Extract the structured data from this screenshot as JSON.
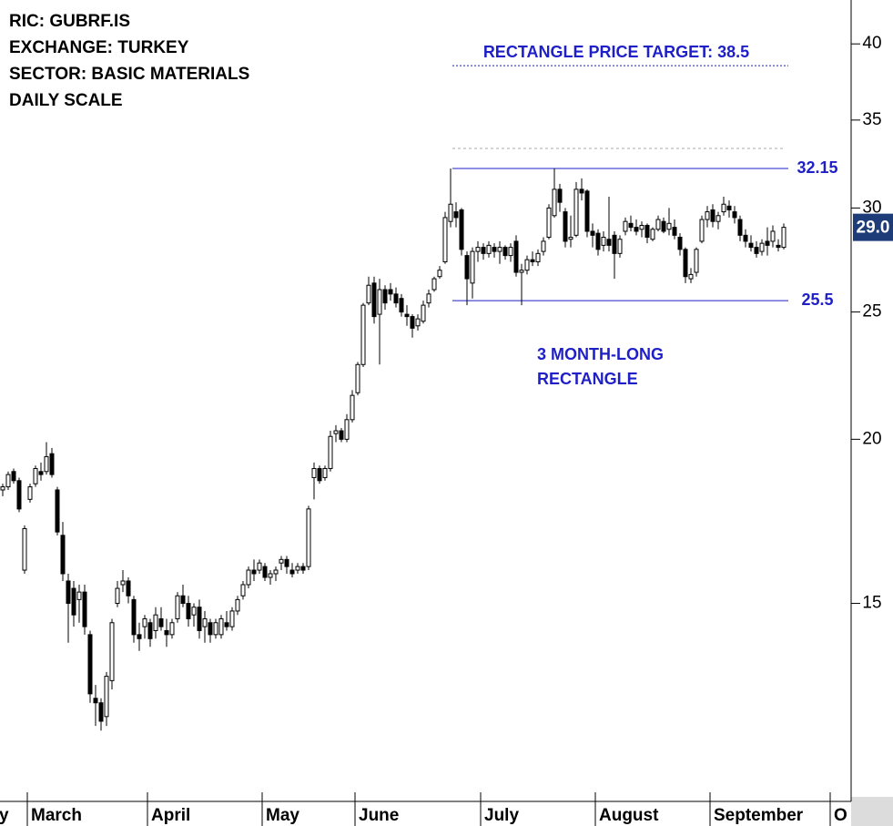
{
  "chart_data": {
    "type": "candlestick",
    "info_lines": [
      "RIC: GUBRF.IS",
      "EXCHANGE: TURKEY",
      "SECTOR: BASIC MATERIALS",
      "DAILY SCALE"
    ],
    "annotation_lines": [
      "3 MONTH-LONG",
      "RECTANGLE"
    ],
    "target": {
      "value": 38.5,
      "label": "RECTANGLE PRICE TARGET: 38.5"
    },
    "levels": [
      32.15,
      25.5
    ],
    "prior_high": 33.3,
    "level_color": "#1f1fc8",
    "last_price": {
      "value": 29,
      "label": "29.0"
    },
    "last_price_color": "#1d3c78",
    "log_scale": true,
    "ylim": [
      10.6,
      43.2
    ],
    "yticks": [
      15,
      20,
      25,
      30,
      35,
      40
    ],
    "categories": [
      "y",
      null,
      null,
      null,
      null,
      "March",
      null,
      null,
      null,
      null,
      null,
      null,
      null,
      null,
      null,
      null,
      null,
      null,
      null,
      null,
      null,
      null,
      null,
      null,
      null,
      null,
      null,
      "April",
      null,
      null,
      null,
      null,
      null,
      null,
      null,
      null,
      null,
      null,
      null,
      null,
      null,
      null,
      null,
      null,
      null,
      null,
      null,
      null,
      "May",
      null,
      null,
      null,
      null,
      null,
      null,
      null,
      null,
      null,
      null,
      null,
      null,
      null,
      null,
      null,
      null,
      "June",
      null,
      null,
      null,
      null,
      null,
      null,
      null,
      null,
      null,
      null,
      null,
      null,
      null,
      null,
      null,
      null,
      null,
      null,
      null,
      null,
      null,
      null,
      "July",
      null,
      null,
      null,
      null,
      null,
      null,
      null,
      null,
      null,
      null,
      null,
      null,
      null,
      null,
      null,
      null,
      null,
      null,
      null,
      null,
      "August",
      null,
      null,
      null,
      null,
      null,
      null,
      null,
      null,
      null,
      null,
      null,
      null,
      null,
      null,
      null,
      null,
      null,
      null,
      null,
      null,
      "September",
      null,
      null,
      null,
      null,
      null,
      null,
      null,
      null,
      null,
      null,
      null,
      null,
      null,
      null,
      null,
      null,
      null,
      null,
      null,
      null,
      null,
      "O"
    ],
    "open": [
      18.3,
      18.4,
      18.9,
      18.6,
      15.9,
      18.0,
      18.5,
      18.9,
      18.9,
      19.5,
      18.3,
      16.9,
      15.6,
      15.4,
      15.1,
      15.3,
      14.2,
      12.7,
      12.6,
      12.3,
      13.1,
      15.0,
      15.5,
      15.6,
      15.1,
      14.2,
      14.4,
      14.5,
      14.3,
      14.6,
      14.3,
      14.2,
      14.6,
      15.2,
      15.0,
      14.7,
      14.9,
      14.4,
      14.5,
      14.2,
      14.2,
      14.5,
      14.4,
      14.8,
      15.2,
      15.5,
      15.9,
      15.9,
      16.0,
      15.7,
      15.8,
      16.1,
      16.2,
      15.9,
      15.9,
      16.0,
      16.0,
      18.7,
      19.0,
      18.7,
      19.0,
      20.2,
      20.3,
      20.0,
      20.7,
      21.7,
      22.8,
      25.4,
      26.3,
      24.9,
      26.0,
      26.0,
      25.8,
      25.6,
      24.9,
      24.8,
      24.4,
      24.6,
      25.4,
      26.0,
      26.6,
      27.3,
      29.3,
      29.8,
      29.9,
      27.6,
      26.3,
      27.8,
      28.0,
      27.7,
      28.0,
      27.8,
      28.0,
      27.6,
      28.3,
      26.8,
      26.9,
      27.4,
      27.3,
      27.8,
      28.5,
      29.6,
      31.0,
      29.8,
      28.4,
      28.6,
      31.0,
      30.9,
      28.8,
      28.7,
      28.1,
      28.4,
      28.6,
      27.7,
      28.8,
      29.2,
      29.0,
      28.9,
      29.1,
      28.4,
      28.9,
      29.3,
      28.9,
      29.0,
      28.5,
      27.9,
      26.5,
      26.8,
      28.3,
      29.4,
      29.9,
      29.3,
      29.8,
      30.1,
      29.8,
      29.4,
      28.6,
      28.2,
      28.0,
      27.8,
      28.3,
      28.3,
      28.1,
      28.0,
      null,
      null,
      null,
      null,
      null,
      null,
      null,
      null,
      null
    ],
    "high": [
      18.5,
      18.9,
      19.0,
      18.7,
      17.2,
      18.5,
      19.1,
      19.2,
      19.9,
      19.7,
      18.4,
      17.3,
      15.8,
      15.6,
      15.5,
      15.5,
      14.3,
      13.0,
      12.7,
      13.3,
      14.6,
      15.6,
      15.9,
      15.7,
      15.2,
      14.5,
      14.7,
      14.6,
      14.9,
      14.9,
      14.6,
      14.6,
      15.3,
      15.5,
      15.2,
      15.0,
      15.1,
      14.8,
      14.6,
      14.6,
      14.7,
      14.8,
      14.9,
      15.2,
      15.6,
      16.0,
      16.2,
      16.2,
      16.1,
      15.9,
      16.0,
      16.3,
      16.3,
      16.1,
      16.1,
      16.1,
      17.8,
      19.2,
      19.1,
      19.1,
      20.3,
      20.5,
      20.4,
      20.9,
      21.8,
      22.9,
      25.4,
      26.6,
      26.6,
      26.5,
      26.2,
      26.3,
      26.1,
      25.8,
      25.3,
      24.9,
      24.9,
      25.5,
      26.0,
      26.6,
      27.1,
      29.8,
      32.15,
      30.3,
      30.0,
      27.8,
      28.0,
      28.3,
      28.2,
      28.3,
      28.2,
      28.3,
      28.1,
      28.2,
      28.6,
      27.2,
      27.6,
      27.8,
      27.9,
      28.5,
      30.2,
      32.15,
      31.3,
      30.0,
      29.6,
      31.4,
      31.6,
      31.0,
      29.2,
      28.9,
      28.8,
      30.6,
      28.8,
      28.6,
      29.5,
      29.6,
      29.4,
      29.3,
      29.2,
      29.0,
      29.6,
      29.5,
      30.0,
      29.4,
      28.7,
      28.0,
      27.0,
      28.0,
      29.6,
      30.1,
      30.2,
      29.8,
      30.6,
      30.4,
      30.1,
      29.6,
      28.9,
      28.6,
      28.3,
      28.4,
      29.0,
      29.1,
      28.4,
      29.2,
      null,
      null,
      null,
      null,
      null,
      null,
      null,
      null,
      null
    ],
    "low": [
      18.1,
      18.3,
      18.5,
      17.6,
      15.8,
      17.9,
      18.4,
      18.6,
      18.8,
      18.7,
      16.9,
      15.6,
      14.0,
      14.4,
      14.5,
      14.2,
      12.6,
      12.1,
      12.0,
      12.1,
      12.9,
      14.9,
      15.3,
      15.0,
      14.0,
      13.8,
      14.1,
      13.9,
      14.1,
      14.3,
      13.9,
      14.1,
      14.5,
      14.9,
      14.4,
      14.4,
      14.1,
      14.0,
      14.0,
      14.1,
      14.1,
      14.3,
      14.3,
      14.7,
      15.1,
      15.4,
      15.6,
      15.8,
      15.6,
      15.5,
      15.6,
      15.9,
      15.8,
      15.7,
      15.8,
      15.8,
      15.9,
      18.0,
      18.5,
      18.6,
      18.9,
      19.9,
      19.9,
      19.9,
      20.6,
      21.6,
      22.7,
      25.3,
      24.5,
      22.8,
      25.1,
      25.5,
      25.2,
      24.8,
      24.4,
      23.9,
      24.2,
      24.5,
      25.2,
      25.9,
      26.5,
      27.2,
      29.0,
      29.0,
      27.6,
      25.3,
      25.6,
      27.3,
      27.4,
      27.5,
      27.5,
      27.2,
      27.4,
      27.3,
      26.6,
      25.3,
      26.7,
      27.1,
      27.1,
      27.6,
      28.4,
      29.5,
      29.8,
      28.0,
      28.0,
      28.5,
      30.4,
      28.5,
      28.0,
      27.6,
      27.8,
      27.8,
      26.5,
      27.5,
      28.6,
      28.8,
      28.6,
      28.5,
      28.2,
      28.3,
      28.8,
      28.7,
      28.6,
      28.4,
      27.6,
      26.3,
      26.3,
      26.6,
      28.2,
      29.0,
      29.0,
      28.9,
      29.6,
      29.5,
      29.2,
      28.3,
      28.0,
      27.8,
      27.5,
      27.6,
      27.6,
      28.0,
      27.8,
      27.9,
      null,
      null,
      null,
      null,
      null,
      null,
      null,
      null,
      null
    ],
    "close": [
      18.4,
      18.8,
      18.6,
      17.7,
      17.1,
      18.4,
      19.0,
      18.8,
      19.4,
      18.8,
      17.0,
      15.8,
      15.0,
      14.7,
      15.3,
      14.4,
      12.8,
      12.6,
      12.2,
      13.2,
      14.5,
      15.4,
      15.6,
      15.2,
      14.2,
      14.1,
      14.6,
      14.1,
      14.7,
      14.4,
      14.2,
      14.5,
      15.2,
      15.0,
      14.6,
      14.9,
      14.3,
      14.6,
      14.2,
      14.5,
      14.6,
      14.4,
      14.8,
      15.1,
      15.5,
      15.9,
      15.8,
      16.1,
      15.7,
      15.8,
      15.9,
      16.2,
      16.0,
      15.8,
      16.0,
      15.9,
      17.7,
      19.0,
      18.6,
      19.0,
      20.1,
      20.3,
      20.0,
      20.7,
      21.6,
      22.8,
      25.3,
      26.2,
      24.8,
      26.0,
      25.4,
      25.8,
      25.4,
      25.0,
      24.8,
      24.3,
      24.7,
      25.3,
      25.8,
      26.5,
      26.9,
      29.5,
      30.2,
      29.5,
      27.9,
      26.5,
      27.8,
      28.0,
      27.7,
      28.1,
      27.8,
      28.0,
      27.6,
      28.0,
      26.8,
      26.9,
      27.4,
      27.3,
      27.7,
      28.3,
      30.0,
      31.0,
      30.3,
      28.3,
      28.5,
      31.0,
      30.8,
      28.8,
      28.6,
      27.9,
      28.5,
      28.1,
      27.7,
      28.4,
      29.3,
      29.0,
      28.8,
      29.1,
      28.5,
      28.9,
      29.4,
      28.8,
      29.2,
      28.6,
      27.9,
      26.6,
      26.7,
      27.9,
      29.4,
      29.8,
      29.3,
      29.6,
      30.2,
      29.9,
      29.5,
      28.6,
      28.3,
      28.0,
      27.7,
      28.2,
      28.1,
      28.8,
      28.0,
      29.0,
      null,
      null,
      null,
      null,
      null,
      null,
      null,
      null,
      null
    ]
  }
}
